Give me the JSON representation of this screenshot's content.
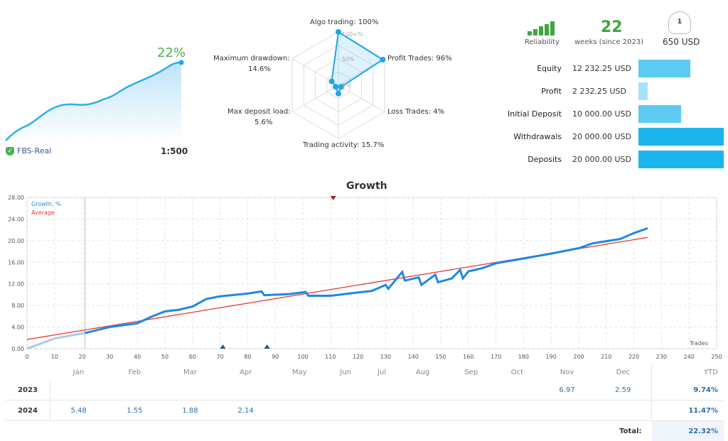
{
  "account": {
    "growth": "22%",
    "server": "FBS-Real",
    "leverage": "1:500"
  },
  "radar": {
    "center_label_top": "100+%",
    "mid_label": "50%",
    "zero_label": "0%",
    "axes": [
      {
        "label": "Algo trading: 100%",
        "value": 100
      },
      {
        "label": "Profit Trades: 96%",
        "value": 96
      },
      {
        "label": "Loss Trades: 4%",
        "value": 4
      },
      {
        "label": "Trading activity: 15.7%",
        "value": 15.7
      },
      {
        "label": "Max deposit load:",
        "value_text": "5.6%",
        "value": 5.6
      },
      {
        "label": "Maximum drawdown:",
        "value_text": "14.6%",
        "value": 14.6
      }
    ]
  },
  "summary": {
    "reliability_label": "Reliability",
    "weeks": "22",
    "weeks_label": "weeks (since 2023)",
    "subscribers": "1",
    "price": "650 USD"
  },
  "stats": [
    {
      "label": "Equity",
      "value": "12 232.25 USD",
      "fraction": 0.61,
      "color": "#5ccaf2"
    },
    {
      "label": "Profit",
      "value": "2 232.25 USD",
      "fraction": 0.11,
      "color": "#a7e2f8"
    },
    {
      "label": "Initial Deposit",
      "value": "10 000.00 USD",
      "fraction": 0.5,
      "color": "#5ccaf2"
    },
    {
      "label": "Withdrawals",
      "value": "20 000.00 USD",
      "fraction": 1,
      "color": "#1db5ee"
    },
    {
      "label": "Deposits",
      "value": "20 000.00 USD",
      "fraction": 1,
      "color": "#1db5ee"
    }
  ],
  "chart_data": {
    "type": "line",
    "title": "Growth",
    "xlabel": "Trades",
    "xlim": [
      0,
      250
    ],
    "ylim": [
      0,
      28
    ],
    "grid": true,
    "legend": "top-left",
    "xticks": [
      0,
      10,
      20,
      30,
      40,
      50,
      60,
      70,
      80,
      90,
      100,
      110,
      120,
      130,
      140,
      150,
      160,
      170,
      180,
      190,
      200,
      210,
      220,
      230,
      240,
      250
    ],
    "yticks": [
      "0.00",
      "4.00",
      "8.00",
      "12.00",
      "16.00",
      "20.00",
      "24.00",
      "28.00"
    ],
    "series": [
      {
        "name": "Growth, %",
        "color": "#1e88e5",
        "x": [
          0,
          10,
          21,
          30,
          40,
          45,
          50,
          55,
          60,
          65,
          70,
          80,
          85,
          86,
          95,
          101,
          102,
          110,
          120,
          125,
          130,
          131,
          136,
          137,
          142,
          143,
          148,
          149,
          154,
          157,
          158,
          160,
          165,
          170,
          180,
          190,
          200,
          205,
          210,
          215,
          220,
          225
        ],
        "y": [
          0,
          1.9,
          2.9,
          4.0,
          4.7,
          5.9,
          6.9,
          7.2,
          7.8,
          9.2,
          9.7,
          10.2,
          10.6,
          9.9,
          10.1,
          10.5,
          9.8,
          9.8,
          10.4,
          10.7,
          11.8,
          11.1,
          14.2,
          12.6,
          13.2,
          11.8,
          13.7,
          12.3,
          13.0,
          14.6,
          13.0,
          14.3,
          14.9,
          15.8,
          16.7,
          17.6,
          18.6,
          19.5,
          19.9,
          20.3,
          21.4,
          22.3
        ]
      },
      {
        "name": "Average",
        "color": "#e53935",
        "x": [
          0,
          225
        ],
        "y": [
          1.7,
          20.6
        ]
      }
    ],
    "markers": {
      "down": [
        111
      ],
      "up": [
        71,
        87
      ]
    }
  },
  "table": {
    "headers": [
      "",
      "Jan",
      "Feb",
      "Mar",
      "Apr",
      "May",
      "Jun",
      "Jul",
      "Aug",
      "Sep",
      "Oct",
      "Nov",
      "Dec",
      "YTD"
    ],
    "rows": [
      [
        "2023",
        "",
        "",
        "",
        "",
        "",
        "",
        "",
        "",
        "",
        "",
        "6.97",
        "2.59",
        "9.74%"
      ],
      [
        "2024",
        "5.48",
        "1.55",
        "1.88",
        "2.14",
        "",
        "",
        "",
        "",
        "",
        "",
        "",
        "",
        "11.47%"
      ]
    ],
    "total_label": "Total:",
    "total": "22.32%"
  }
}
